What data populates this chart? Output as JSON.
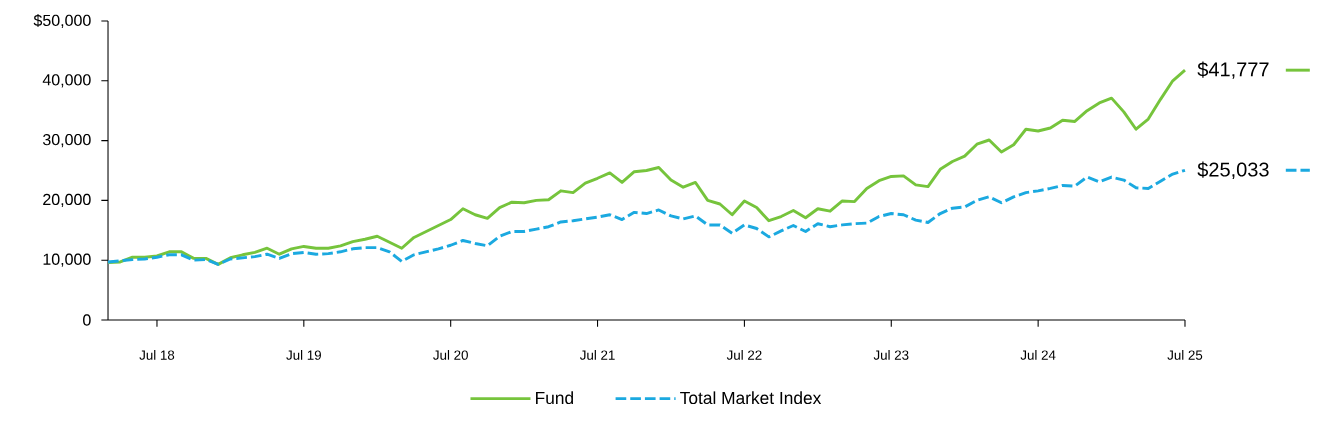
{
  "chart_data": {
    "type": "line",
    "x": [
      "2018-03",
      "2018-04",
      "2018-05",
      "2018-06",
      "2018-07",
      "2018-08",
      "2018-09",
      "2018-10",
      "2018-11",
      "2018-12",
      "2019-01",
      "2019-02",
      "2019-03",
      "2019-04",
      "2019-05",
      "2019-06",
      "2019-07",
      "2019-08",
      "2019-09",
      "2019-10",
      "2019-11",
      "2019-12",
      "2020-01",
      "2020-02",
      "2020-03",
      "2020-04",
      "2020-05",
      "2020-06",
      "2020-07",
      "2020-08",
      "2020-09",
      "2020-10",
      "2020-11",
      "2020-12",
      "2021-01",
      "2021-02",
      "2021-03",
      "2021-04",
      "2021-05",
      "2021-06",
      "2021-07",
      "2021-08",
      "2021-09",
      "2021-10",
      "2021-11",
      "2021-12",
      "2022-01",
      "2022-02",
      "2022-03",
      "2022-04",
      "2022-05",
      "2022-06",
      "2022-07",
      "2022-08",
      "2022-09",
      "2022-10",
      "2022-11",
      "2022-12",
      "2023-01",
      "2023-02",
      "2023-03",
      "2023-04",
      "2023-05",
      "2023-06",
      "2023-07",
      "2023-08",
      "2023-09",
      "2023-10",
      "2023-11",
      "2023-12",
      "2024-01",
      "2024-02",
      "2024-03",
      "2024-04",
      "2024-05",
      "2024-06",
      "2024-07",
      "2024-08",
      "2024-09",
      "2024-10",
      "2024-11",
      "2024-12",
      "2025-01",
      "2025-02",
      "2025-03",
      "2025-04",
      "2025-05",
      "2025-06",
      "2025-07"
    ],
    "series": [
      {
        "name": "Fund",
        "color": "#76c43c",
        "line_style": "solid",
        "values": [
          9600,
          9700,
          10500,
          10500,
          10700,
          11400,
          11400,
          10300,
          10300,
          9300,
          10400,
          10900,
          11300,
          12000,
          11000,
          11900,
          12300,
          12000,
          12000,
          12400,
          13100,
          13500,
          14000,
          13000,
          12000,
          13800,
          14800,
          15800,
          16800,
          18600,
          17600,
          17000,
          18800,
          19700,
          19600,
          20000,
          20100,
          21600,
          21300,
          22900,
          23700,
          24600,
          23000,
          24800,
          25000,
          25500,
          23400,
          22200,
          23000,
          20000,
          19400,
          17600,
          19900,
          18800,
          16600,
          17300,
          18300,
          17100,
          18600,
          18200,
          19900,
          19800,
          22000,
          23300,
          24000,
          24100,
          22600,
          22300,
          25200,
          26500,
          27400,
          29400,
          30100,
          28100,
          29300,
          31900,
          31600,
          32100,
          33400,
          33200,
          35000,
          36300,
          37100,
          34800,
          31900,
          33600,
          36900,
          40000,
          41777
        ]
      },
      {
        "name": "Total Market Index",
        "color": "#1ba9e0",
        "line_style": "dashed",
        "values": [
          9700,
          9900,
          10100,
          10200,
          10500,
          10900,
          10900,
          10000,
          10100,
          9300,
          10200,
          10400,
          10600,
          11000,
          10300,
          11100,
          11300,
          11000,
          11100,
          11400,
          11900,
          12100,
          12100,
          11400,
          9800,
          10900,
          11400,
          11900,
          12500,
          13300,
          12800,
          12400,
          14000,
          14800,
          14800,
          15200,
          15600,
          16400,
          16600,
          16900,
          17200,
          17600,
          16800,
          18000,
          17800,
          18400,
          17400,
          16900,
          17400,
          15900,
          15900,
          14500,
          15900,
          15300,
          13900,
          14900,
          15800,
          14800,
          16100,
          15600,
          15900,
          16100,
          16200,
          17300,
          17800,
          17600,
          16700,
          16300,
          17800,
          18700,
          18900,
          20000,
          20600,
          19600,
          20600,
          21300,
          21600,
          22000,
          22500,
          22400,
          23900,
          23100,
          23900,
          23400,
          22100,
          22000,
          23200,
          24400,
          25033
        ]
      }
    ],
    "xlim": [
      "2018-03",
      "2025-07"
    ],
    "xticks": [
      {
        "value": "2018-07",
        "label": "Jul 18"
      },
      {
        "value": "2019-07",
        "label": "Jul 19"
      },
      {
        "value": "2020-07",
        "label": "Jul 20"
      },
      {
        "value": "2021-07",
        "label": "Jul 21"
      },
      {
        "value": "2022-07",
        "label": "Jul 22"
      },
      {
        "value": "2023-07",
        "label": "Jul 23"
      },
      {
        "value": "2024-07",
        "label": "Jul 24"
      },
      {
        "value": "2025-07",
        "label": "Jul 25"
      }
    ],
    "ylim": [
      0,
      50000
    ],
    "yticks": [
      0,
      {
        "value": 10000,
        "label": "10,000"
      },
      {
        "value": 20000,
        "label": "20,000"
      },
      {
        "value": 30000,
        "label": "30,000"
      },
      {
        "value": 40000,
        "label": "40,000"
      },
      {
        "value": 50000,
        "label": "$50,000"
      }
    ],
    "annotations": [
      {
        "text": "$41,777",
        "x": "2025-07",
        "y": 41777
      },
      {
        "text": "$25,033",
        "x": "2025-07",
        "y": 25033
      }
    ],
    "legend": "bottom"
  }
}
